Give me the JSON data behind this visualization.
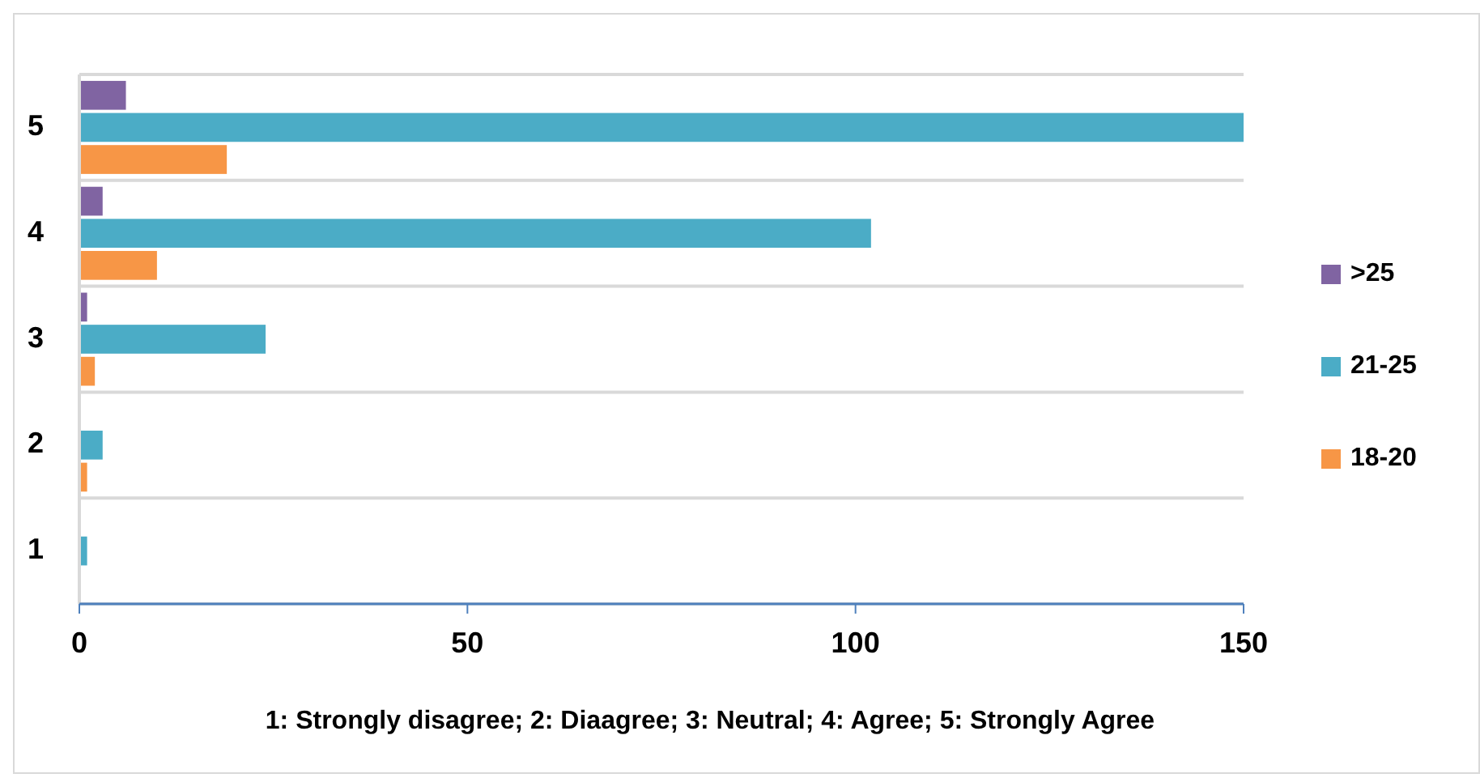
{
  "chart_data": {
    "type": "bar",
    "orientation": "horizontal",
    "xlabel": "1: Strongly disagree; 2: Diaagree; 3: Neutral; 4: Agree; 5: Strongly Agree",
    "categories": [
      "5",
      "4",
      "3",
      "2",
      "1"
    ],
    "series": [
      {
        "name": ">25",
        "color": "#8064a2",
        "values": [
          6,
          3,
          1,
          0,
          0
        ]
      },
      {
        "name": "21-25",
        "color": "#4bacc6",
        "values": [
          150,
          102,
          24,
          3,
          1
        ]
      },
      {
        "name": "18-20",
        "color": "#f79646",
        "values": [
          19,
          10,
          2,
          1,
          0
        ]
      }
    ],
    "xlim": [
      0,
      150
    ],
    "xticks": [
      0,
      50,
      100,
      150
    ],
    "grid": "y",
    "legend": "right"
  }
}
